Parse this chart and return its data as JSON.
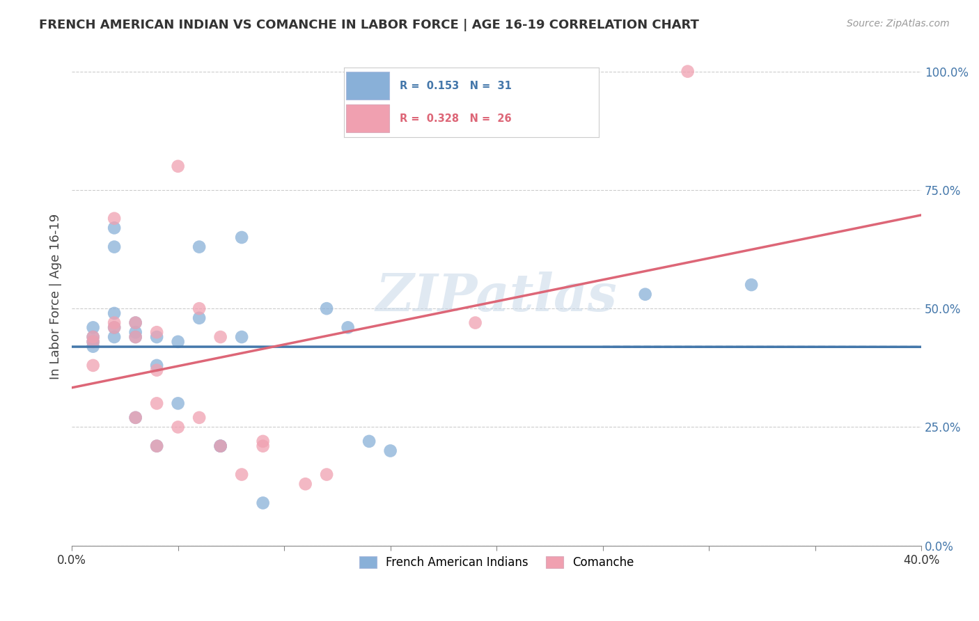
{
  "title": "FRENCH AMERICAN INDIAN VS COMANCHE IN LABOR FORCE | AGE 16-19 CORRELATION CHART",
  "source": "Source: ZipAtlas.com",
  "ylabel": "In Labor Force | Age 16-19",
  "xlim": [
    0.0,
    0.4
  ],
  "ylim": [
    0.0,
    1.05
  ],
  "yticks": [
    0.0,
    0.25,
    0.5,
    0.75,
    1.0
  ],
  "ytick_labels": [
    "0.0%",
    "25.0%",
    "50.0%",
    "75.0%",
    "100.0%"
  ],
  "xticks": [
    0.0,
    0.05,
    0.1,
    0.15,
    0.2,
    0.25,
    0.3,
    0.35,
    0.4
  ],
  "xtick_labels": [
    "0.0%",
    "",
    "",
    "",
    "",
    "",
    "",
    "",
    "40.0%"
  ],
  "watermark": "ZIPatlas",
  "blue_color": "#89b0d8",
  "pink_color": "#f0a0b0",
  "blue_line_color": "#4477aa",
  "pink_line_color": "#dd6677",
  "blue_x": [
    0.01,
    0.01,
    0.01,
    0.01,
    0.02,
    0.02,
    0.02,
    0.02,
    0.02,
    0.03,
    0.03,
    0.03,
    0.03,
    0.04,
    0.04,
    0.04,
    0.05,
    0.05,
    0.06,
    0.06,
    0.07,
    0.07,
    0.08,
    0.08,
    0.09,
    0.12,
    0.13,
    0.14,
    0.15,
    0.27,
    0.32
  ],
  "blue_y": [
    0.46,
    0.44,
    0.43,
    0.42,
    0.67,
    0.63,
    0.49,
    0.46,
    0.44,
    0.47,
    0.45,
    0.44,
    0.27,
    0.44,
    0.38,
    0.21,
    0.43,
    0.3,
    0.63,
    0.48,
    0.21,
    0.21,
    0.65,
    0.44,
    0.09,
    0.5,
    0.46,
    0.22,
    0.2,
    0.53,
    0.55
  ],
  "pink_x": [
    0.01,
    0.01,
    0.01,
    0.02,
    0.02,
    0.02,
    0.03,
    0.03,
    0.03,
    0.04,
    0.04,
    0.04,
    0.04,
    0.05,
    0.05,
    0.06,
    0.06,
    0.07,
    0.07,
    0.08,
    0.09,
    0.09,
    0.11,
    0.12,
    0.19,
    0.29
  ],
  "pink_y": [
    0.44,
    0.43,
    0.38,
    0.69,
    0.47,
    0.46,
    0.47,
    0.44,
    0.27,
    0.45,
    0.37,
    0.3,
    0.21,
    0.8,
    0.25,
    0.5,
    0.27,
    0.44,
    0.21,
    0.15,
    0.22,
    0.21,
    0.13,
    0.15,
    0.47,
    1.0
  ],
  "legend_r1": "R =  0.153   N =  31",
  "legend_r2": "R =  0.328   N =  26",
  "legend_label1": "French American Indians",
  "legend_label2": "Comanche"
}
